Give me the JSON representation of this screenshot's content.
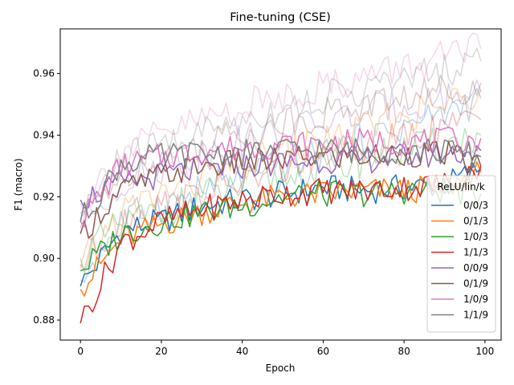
{
  "chart_data": {
    "type": "line",
    "title": "Fine-tuning (CSE)",
    "xlabel": "Epoch",
    "ylabel": "F1 (macro)",
    "xlim": [
      -5,
      104
    ],
    "ylim": [
      0.8735,
      0.9745
    ],
    "xticks": [
      0,
      20,
      40,
      60,
      80,
      100
    ],
    "xtick_labels": [
      "0",
      "20",
      "40",
      "60",
      "80",
      "100"
    ],
    "yticks": [
      0.88,
      0.9,
      0.92,
      0.94,
      0.96
    ],
    "ytick_labels": [
      "0.88",
      "0.90",
      "0.92",
      "0.94",
      "0.96"
    ],
    "grid": false,
    "legend": {
      "title": "ReLU/lin/k",
      "placement": "center-right"
    },
    "series": [
      {
        "name": "0/0/3",
        "color": "#1f77b4",
        "faded": false,
        "x": [
          0,
          10,
          20,
          30,
          40,
          50,
          60,
          70,
          80,
          90,
          99
        ],
        "values": [
          0.891,
          0.909,
          0.912,
          0.917,
          0.919,
          0.921,
          0.923,
          0.922,
          0.923,
          0.924,
          0.929
        ]
      },
      {
        "name": "0/1/3",
        "color": "#ff7f0e",
        "faded": false,
        "x": [
          0,
          10,
          20,
          30,
          40,
          50,
          60,
          70,
          80,
          90,
          99
        ],
        "values": [
          0.89,
          0.906,
          0.911,
          0.915,
          0.918,
          0.92,
          0.921,
          0.922,
          0.922,
          0.923,
          0.928
        ]
      },
      {
        "name": "1/0/3",
        "color": "#2ca02c",
        "faded": false,
        "x": [
          0,
          10,
          20,
          30,
          40,
          50,
          60,
          70,
          80,
          90,
          99
        ],
        "values": [
          0.896,
          0.908,
          0.912,
          0.915,
          0.917,
          0.92,
          0.921,
          0.921,
          0.922,
          0.922,
          0.921
        ]
      },
      {
        "name": "1/1/3",
        "color": "#d62728",
        "faded": false,
        "x": [
          0,
          10,
          20,
          30,
          40,
          50,
          60,
          70,
          80,
          90,
          99
        ],
        "values": [
          0.879,
          0.905,
          0.912,
          0.916,
          0.919,
          0.921,
          0.922,
          0.922,
          0.923,
          0.924,
          0.93
        ]
      },
      {
        "name": "0/0/9",
        "color": "#9467bd",
        "faded": false,
        "x": [
          0,
          10,
          20,
          30,
          40,
          50,
          60,
          70,
          80,
          90,
          99
        ],
        "values": [
          0.919,
          0.924,
          0.927,
          0.929,
          0.93,
          0.931,
          0.932,
          0.932,
          0.933,
          0.934,
          0.935
        ]
      },
      {
        "name": "0/1/9",
        "color": "#8c564b",
        "faded": false,
        "x": [
          0,
          10,
          20,
          30,
          40,
          50,
          60,
          70,
          80,
          90,
          99
        ],
        "values": [
          0.908,
          0.922,
          0.927,
          0.93,
          0.931,
          0.932,
          0.933,
          0.933,
          0.934,
          0.934,
          0.93
        ]
      },
      {
        "name": "1/0/9",
        "color": "#e377c2",
        "faded": false,
        "x": [
          0,
          10,
          20,
          30,
          40,
          50,
          60,
          70,
          80,
          90,
          99
        ],
        "values": [
          0.912,
          0.93,
          0.933,
          0.935,
          0.936,
          0.937,
          0.937,
          0.938,
          0.938,
          0.938,
          0.939
        ]
      },
      {
        "name": "1/1/9",
        "color": "#7f7f7f",
        "faded": false,
        "x": [
          0,
          10,
          20,
          30,
          40,
          50,
          60,
          70,
          80,
          90,
          99
        ],
        "values": [
          0.912,
          0.931,
          0.933,
          0.934,
          0.934,
          0.935,
          0.935,
          0.935,
          0.935,
          0.935,
          0.933
        ]
      },
      {
        "color": "#1f77b4",
        "faded": true,
        "x": [
          0,
          10,
          20,
          30,
          40,
          50,
          60,
          70,
          80,
          90,
          99
        ],
        "values": [
          0.893,
          0.912,
          0.917,
          0.922,
          0.926,
          0.93,
          0.934,
          0.938,
          0.943,
          0.947,
          0.952
        ]
      },
      {
        "color": "#ff7f0e",
        "faded": true,
        "x": [
          0,
          10,
          20,
          30,
          40,
          50,
          60,
          70,
          80,
          90,
          99
        ],
        "values": [
          0.897,
          0.915,
          0.921,
          0.926,
          0.93,
          0.934,
          0.938,
          0.942,
          0.946,
          0.95,
          0.955
        ]
      },
      {
        "color": "#2ca02c",
        "faded": true,
        "x": [
          0,
          10,
          20,
          30,
          40,
          50,
          60,
          70,
          80,
          90,
          99
        ],
        "values": [
          0.9,
          0.911,
          0.915,
          0.92,
          0.923,
          0.926,
          0.929,
          0.932,
          0.935,
          0.937,
          0.94
        ]
      },
      {
        "color": "#d62728",
        "faded": true,
        "x": [
          0,
          10,
          20,
          30,
          40,
          50,
          60,
          70,
          80,
          90,
          99
        ],
        "values": [
          0.898,
          0.912,
          0.917,
          0.921,
          0.925,
          0.929,
          0.932,
          0.935,
          0.939,
          0.942,
          0.945
        ]
      },
      {
        "color": "#9467bd",
        "faded": true,
        "x": [
          0,
          10,
          20,
          30,
          40,
          50,
          60,
          70,
          80,
          90,
          99
        ],
        "values": [
          0.91,
          0.925,
          0.93,
          0.934,
          0.938,
          0.941,
          0.944,
          0.947,
          0.95,
          0.952,
          0.954
        ]
      },
      {
        "color": "#8c564b",
        "faded": true,
        "x": [
          0,
          10,
          20,
          30,
          40,
          50,
          60,
          70,
          80,
          90,
          99
        ],
        "values": [
          0.913,
          0.928,
          0.933,
          0.937,
          0.941,
          0.944,
          0.947,
          0.95,
          0.952,
          0.955,
          0.957
        ]
      },
      {
        "color": "#e377c2",
        "faded": true,
        "x": [
          0,
          10,
          20,
          30,
          40,
          50,
          60,
          70,
          80,
          90,
          99
        ],
        "values": [
          0.918,
          0.934,
          0.94,
          0.945,
          0.949,
          0.953,
          0.956,
          0.959,
          0.962,
          0.965,
          0.968
        ]
      },
      {
        "color": "#7f7f7f",
        "faded": true,
        "x": [
          0,
          10,
          20,
          30,
          40,
          50,
          60,
          70,
          80,
          90,
          99
        ],
        "values": [
          0.915,
          0.932,
          0.937,
          0.941,
          0.945,
          0.949,
          0.952,
          0.955,
          0.958,
          0.961,
          0.964
        ]
      }
    ]
  }
}
